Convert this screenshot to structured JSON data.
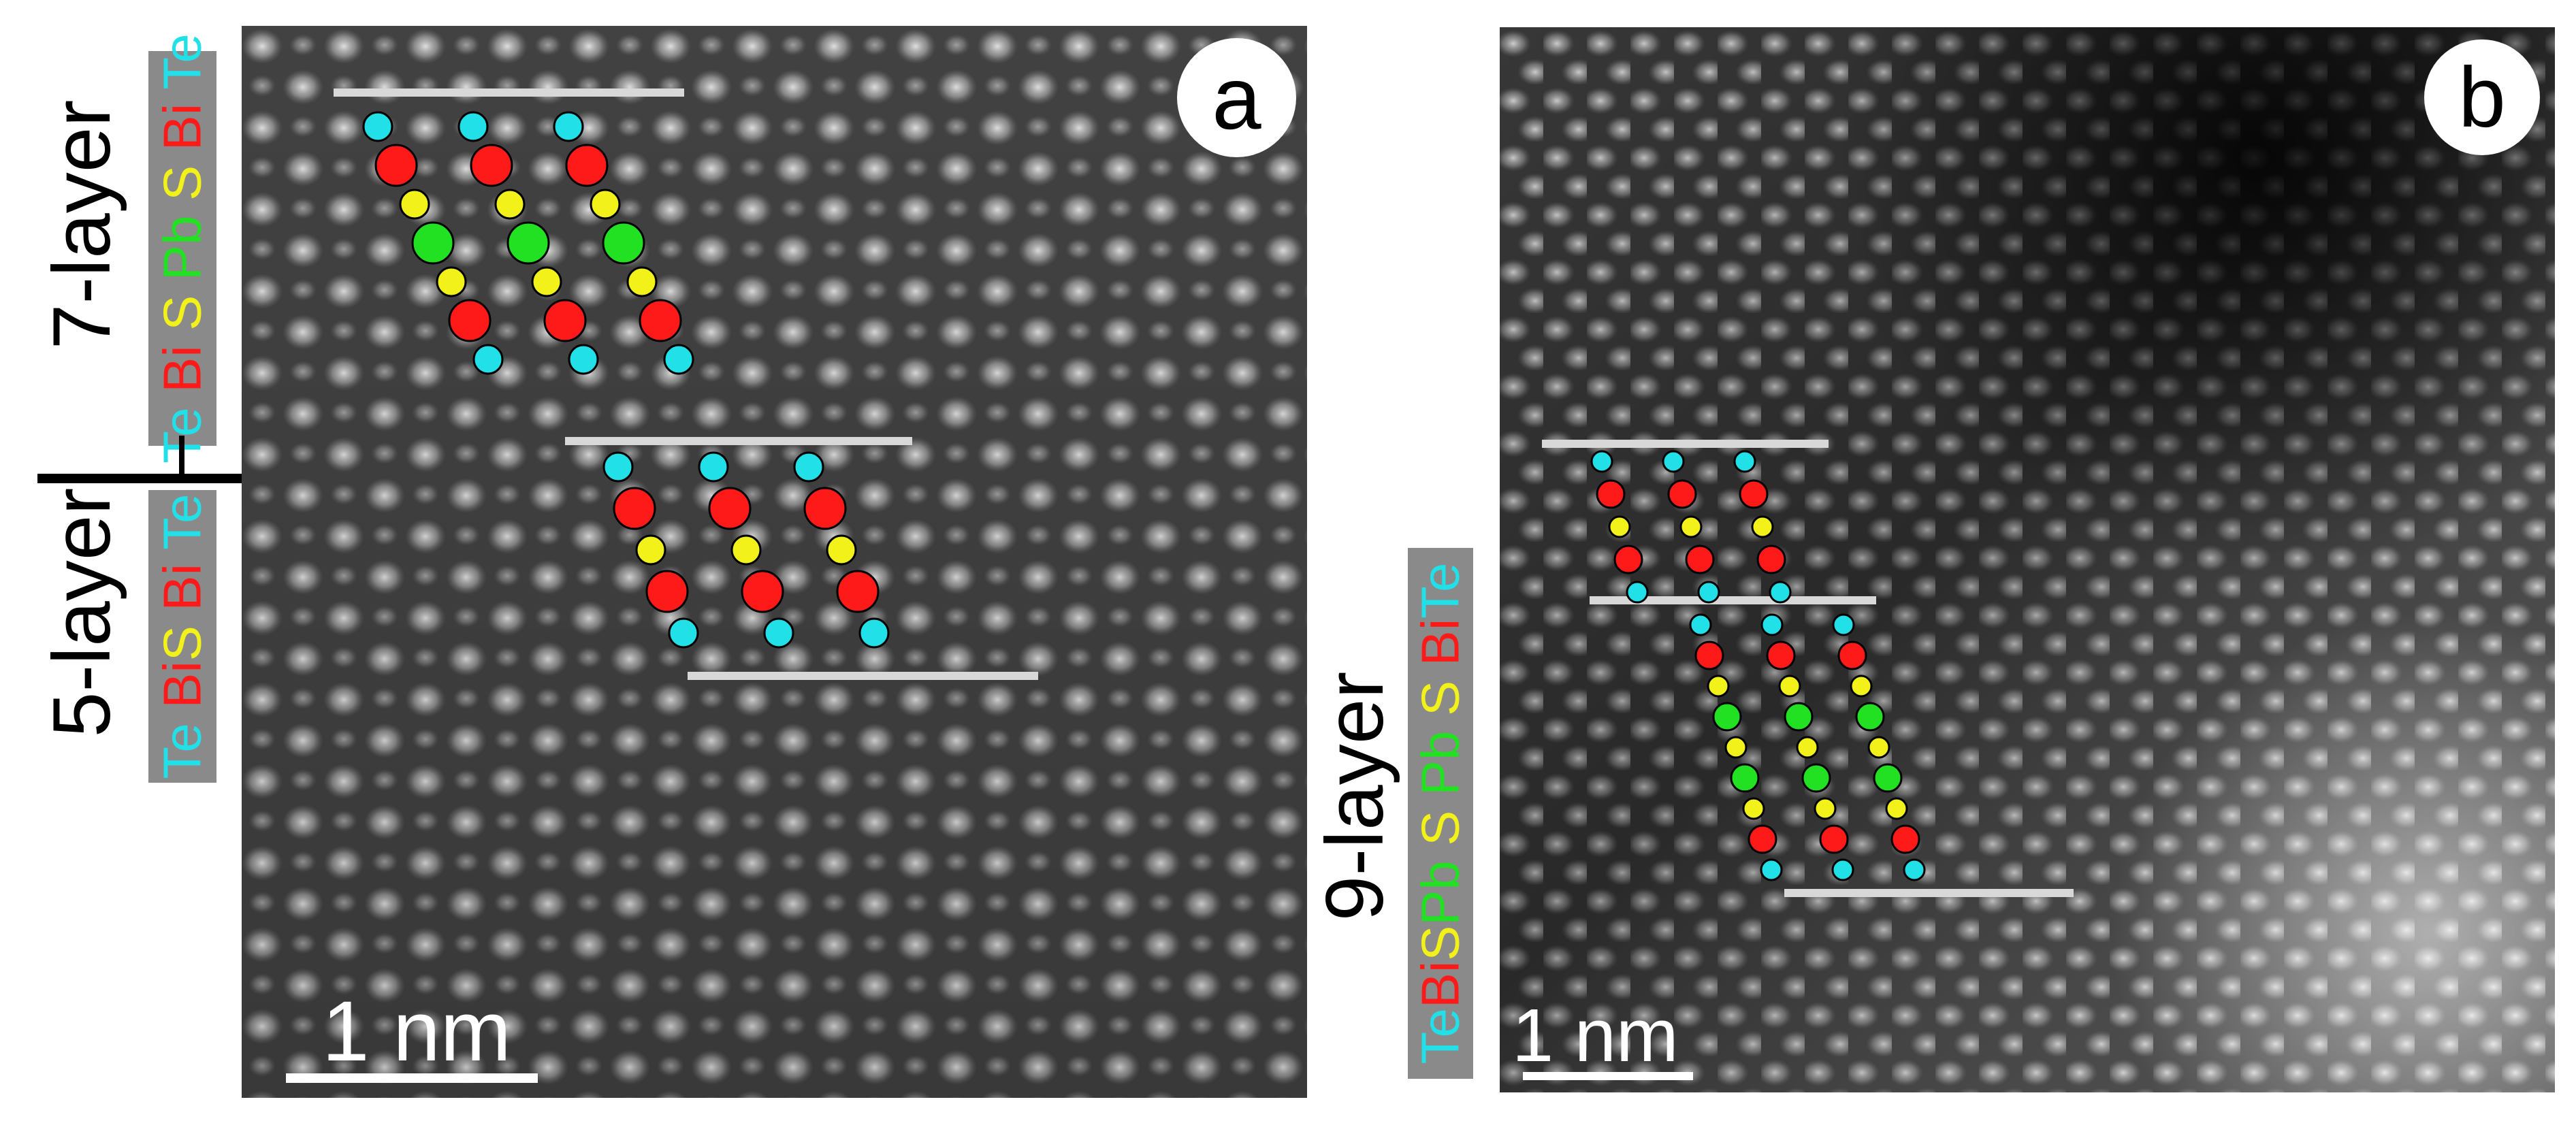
{
  "panel_a": {
    "letter": "a",
    "scale_bar_label": "1 nm",
    "upper_block": {
      "layer_label": "7-layer",
      "elements": [
        {
          "symbol": "Te",
          "color": "#22e0e8"
        },
        {
          "symbol": "Bi",
          "color": "#ff1a1a"
        },
        {
          "symbol": "S",
          "color": "#f2f21a"
        },
        {
          "symbol": "Pb",
          "color": "#22e022"
        },
        {
          "symbol": "S",
          "color": "#f2f21a"
        },
        {
          "symbol": "Bi",
          "color": "#ff1a1a"
        },
        {
          "symbol": "Te",
          "color": "#22e0e8"
        }
      ]
    },
    "lower_block": {
      "layer_label": "5-layer",
      "elements": [
        {
          "symbol": "Te",
          "color": "#22e0e8"
        },
        {
          "symbol": "Bi",
          "color": "#ff1a1a"
        },
        {
          "symbol": "S",
          "color": "#f2f21a"
        },
        {
          "symbol": "Bi",
          "color": "#ff1a1a"
        },
        {
          "symbol": "Te",
          "color": "#22e0e8"
        }
      ]
    }
  },
  "panel_b": {
    "letter": "b",
    "scale_bar_label": "1 nm",
    "block": {
      "layer_label": "9-layer",
      "elements": [
        {
          "symbol": "Te",
          "color": "#22e0e8"
        },
        {
          "symbol": "Bi",
          "color": "#ff1a1a"
        },
        {
          "symbol": "S",
          "color": "#f2f21a"
        },
        {
          "symbol": "Pb",
          "color": "#22e022"
        },
        {
          "symbol": "S",
          "color": "#f2f21a"
        },
        {
          "symbol": "Pb",
          "color": "#22e022"
        },
        {
          "symbol": "S",
          "color": "#f2f21a"
        },
        {
          "symbol": "Bi",
          "color": "#ff1a1a"
        },
        {
          "symbol": "Te",
          "color": "#22e0e8"
        }
      ]
    }
  },
  "colors": {
    "Te": "#22e0e8",
    "Bi": "#ff1a1a",
    "S": "#f2f21a",
    "Pb": "#22e022",
    "marker_line": "#d8d8d8"
  }
}
